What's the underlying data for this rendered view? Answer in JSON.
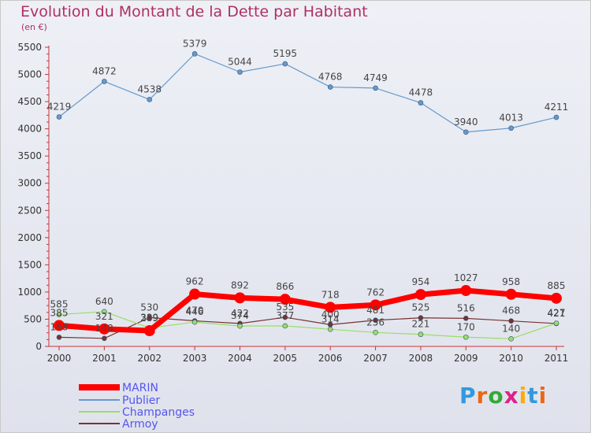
{
  "chart_data": {
    "type": "line",
    "title": "Evolution du Montant de la Dette par Habitant",
    "subtitle": "(en €)",
    "x": [
      "2000",
      "2001",
      "2002",
      "2003",
      "2004",
      "2005",
      "2006",
      "2007",
      "2008",
      "2009",
      "2010",
      "2011"
    ],
    "y_ticks": [
      "0",
      "500",
      "1000",
      "1500",
      "2000",
      "2500",
      "3000",
      "3500",
      "4000",
      "4500",
      "5000",
      "5500"
    ],
    "ylim": [
      0,
      5500
    ],
    "grid": false,
    "legend_position": "bottom-left",
    "series": [
      {
        "name": "MARIN",
        "color": "#ff0000",
        "values": [
          385,
          321,
          289,
          962,
          892,
          866,
          718,
          762,
          954,
          1027,
          958,
          885
        ],
        "labels": [
          "385",
          "321",
          "289",
          "962",
          "892",
          "866",
          "718",
          "762",
          "954",
          "1027",
          "958",
          "885"
        ]
      },
      {
        "name": "Publier",
        "color": "#6699cc",
        "values": [
          4219,
          4872,
          4538,
          5379,
          5044,
          5195,
          4768,
          4749,
          4478,
          3940,
          4013,
          4211
        ],
        "labels": [
          "4219",
          "4872",
          "4538",
          "5379",
          "5044",
          "5195",
          "4768",
          "4749",
          "4478",
          "3940",
          "4013",
          "4211"
        ]
      },
      {
        "name": "Champanges",
        "color": "#99dd66",
        "values": [
          585,
          640,
          339,
          446,
          374,
          377,
          314,
          256,
          221,
          170,
          140,
          427
        ],
        "labels": [
          "585",
          "640",
          "339",
          "446",
          "374",
          "377",
          "314",
          "256",
          "221",
          "170",
          "140",
          "427"
        ]
      },
      {
        "name": "Armoy",
        "color": "#773333",
        "values": [
          168,
          148,
          530,
          470,
          422,
          535,
          400,
          481,
          525,
          516,
          468,
          421
        ],
        "labels": [
          "168",
          "148",
          "530",
          "470",
          "422",
          "535",
          "400",
          "481",
          "525",
          "516",
          "468",
          "421"
        ]
      }
    ]
  },
  "logo": {
    "text": "Proxiti",
    "colors": [
      "#3399dd",
      "#ee6611",
      "#33aa33",
      "#dd2288",
      "#ffaa00",
      "#3399dd",
      "#ee6611"
    ]
  }
}
